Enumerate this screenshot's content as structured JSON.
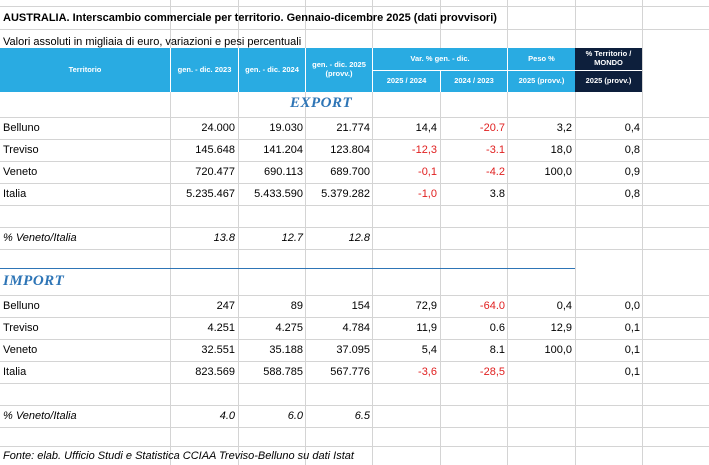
{
  "title": "AUSTRALIA. Interscambio commerciale per territorio. Gennaio-dicembre  2025  (dati provvisori)",
  "subtitle": "Valori assoluti in migliaia di euro, variazioni e pesi percentuali",
  "header": {
    "territorio": "Territorio",
    "col_2023": "gen. - dic. 2023",
    "col_2024": "gen. - dic. 2024",
    "col_2025_l1": "gen. - dic. 2025",
    "col_2025_l2": "(provv.)",
    "var_group": "Var. % gen. - dic.",
    "var_2025": "2025 / 2024",
    "var_2024": "2024 / 2023",
    "peso_group": "Peso %",
    "peso_sub": "2025  (provv.)",
    "mondo_l1": "% Territorio /",
    "mondo_l2": "MONDO",
    "mondo_sub": "2025  (provv.)"
  },
  "export": {
    "label": "EXPORT",
    "rows": [
      {
        "name": "Belluno",
        "v2023": "24.000",
        "v2024": "19.030",
        "v2025": "21.774",
        "var25": "14,4",
        "var24": "-20.7",
        "peso": "3,2",
        "mondo": "0,4"
      },
      {
        "name": "Treviso",
        "v2023": "145.648",
        "v2024": "141.204",
        "v2025": "123.804",
        "var25": "-12,3",
        "var24": "-3.1",
        "peso": "18,0",
        "mondo": "0,8"
      },
      {
        "name": "Veneto",
        "v2023": "720.477",
        "v2024": "690.113",
        "v2025": "689.700",
        "var25": "-0,1",
        "var24": "-4.2",
        "peso": "100,0",
        "mondo": "0,9"
      },
      {
        "name": "Italia",
        "v2023": "5.235.467",
        "v2024": "5.433.590",
        "v2025": "5.379.282",
        "var25": "-1,0",
        "var24": "3.8",
        "peso": "",
        "mondo": "0,8"
      }
    ],
    "ratio": {
      "name": "% Veneto/Italia",
      "v2023": "13.8",
      "v2024": "12.7",
      "v2025": "12.8"
    }
  },
  "import": {
    "label": "IMPORT",
    "rows": [
      {
        "name": "Belluno",
        "v2023": "247",
        "v2024": "89",
        "v2025": "154",
        "var25": "72,9",
        "var24": "-64.0",
        "peso": "0,4",
        "mondo": "0,0"
      },
      {
        "name": "Treviso",
        "v2023": "4.251",
        "v2024": "4.275",
        "v2025": "4.784",
        "var25": "11,9",
        "var24": "0.6",
        "peso": "12,9",
        "mondo": "0,1"
      },
      {
        "name": "Veneto",
        "v2023": "32.551",
        "v2024": "35.188",
        "v2025": "37.095",
        "var25": "5,4",
        "var24": "8.1",
        "peso": "100,0",
        "mondo": "0,1"
      },
      {
        "name": "Italia",
        "v2023": "823.569",
        "v2024": "588.785",
        "v2025": "567.776",
        "var25": "-3,6",
        "var24": "-28,5",
        "peso": "",
        "mondo": "0,1"
      }
    ],
    "ratio": {
      "name": "% Veneto/Italia",
      "v2023": "4.0",
      "v2024": "6.0",
      "v2025": "6.5"
    }
  },
  "footer": "Fonte: elab. Ufficio Studi e Statistica CCIAA Treviso-Belluno su dati Istat",
  "colors": {
    "header_blue": "#29abe2",
    "header_dark": "#0d1f3c",
    "section_blue": "#2e75b6",
    "negative": "#e02020"
  }
}
